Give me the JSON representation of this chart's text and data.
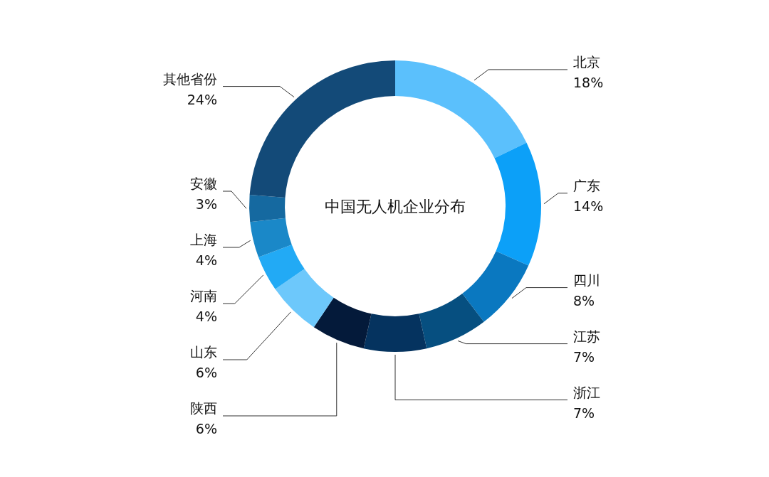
{
  "chart_data": {
    "type": "donut",
    "title": "中国无人机企业分布",
    "categories": [
      "北京",
      "广东",
      "四川",
      "江苏",
      "浙江",
      "陕西",
      "山东",
      "河南",
      "上海",
      "安徽",
      "其他省份"
    ],
    "values": [
      18,
      14,
      8,
      7,
      7,
      6,
      6,
      4,
      4,
      3,
      24
    ],
    "value_labels": [
      "18%",
      "14%",
      "8%",
      "7%",
      "7%",
      "6%",
      "6%",
      "4%",
      "4%",
      "3%",
      "24%"
    ],
    "colors": [
      "#5bc0fc",
      "#0ca0f8",
      "#0a78c0",
      "#064f80",
      "#05335f",
      "#041a3a",
      "#6dc8fb",
      "#22aaf5",
      "#1a88c8",
      "#1569a0",
      "#134a78"
    ]
  }
}
